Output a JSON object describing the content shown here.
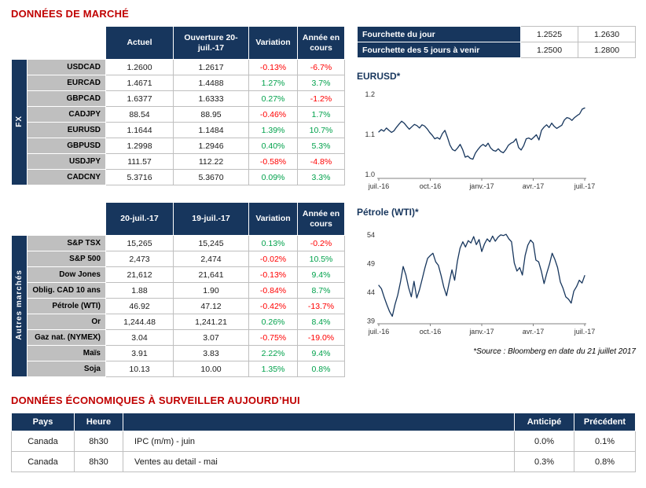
{
  "page": {
    "market_title": "DONNÉES DE MARCHÉ",
    "economic_title": "DONNÉES ÉCONOMIQUES À SURVEILLER AUJOURD’HUI",
    "source_note": "*Source : Bloomberg en date du  21 juillet 2017"
  },
  "colors": {
    "navy": "#17365D",
    "title_red": "#C00000",
    "positive_green": "#00A14B",
    "negative_red": "#FF0000",
    "label_gray": "#BFBFBF"
  },
  "fx_table": {
    "group_label": "FX",
    "headers": [
      "Actuel",
      "Ouverture 20-juil.-17",
      "Variation",
      "Année en cours"
    ],
    "rows": [
      {
        "label": "USDCAD",
        "actuel": "1.2600",
        "ouverture": "1.2617",
        "variation": "-0.13%",
        "ytd": "-6.7%"
      },
      {
        "label": "EURCAD",
        "actuel": "1.4671",
        "ouverture": "1.4488",
        "variation": "1.27%",
        "ytd": "3.7%"
      },
      {
        "label": "GBPCAD",
        "actuel": "1.6377",
        "ouverture": "1.6333",
        "variation": "0.27%",
        "ytd": "-1.2%"
      },
      {
        "label": "CADJPY",
        "actuel": "88.54",
        "ouverture": "88.95",
        "variation": "-0.46%",
        "ytd": "1.7%"
      },
      {
        "label": "EURUSD",
        "actuel": "1.1644",
        "ouverture": "1.1484",
        "variation": "1.39%",
        "ytd": "10.7%"
      },
      {
        "label": "GBPUSD",
        "actuel": "1.2998",
        "ouverture": "1.2946",
        "variation": "0.40%",
        "ytd": "5.3%"
      },
      {
        "label": "USDJPY",
        "actuel": "111.57",
        "ouverture": "112.22",
        "variation": "-0.58%",
        "ytd": "-4.8%"
      },
      {
        "label": "CADCNY",
        "actuel": "5.3716",
        "ouverture": "5.3670",
        "variation": "0.09%",
        "ytd": "3.3%"
      }
    ]
  },
  "markets_table": {
    "group_label": "Autres marchés",
    "headers": [
      "20-juil.-17",
      "19-juil.-17",
      "Variation",
      "Année en cours"
    ],
    "rows": [
      {
        "label": "S&P TSX",
        "d1": "15,265",
        "d2": "15,245",
        "variation": "0.13%",
        "ytd": "-0.2%"
      },
      {
        "label": "S&P 500",
        "d1": "2,473",
        "d2": "2,474",
        "variation": "-0.02%",
        "ytd": "10.5%"
      },
      {
        "label": "Dow Jones",
        "d1": "21,612",
        "d2": "21,641",
        "variation": "-0.13%",
        "ytd": "9.4%"
      },
      {
        "label": "Oblig. CAD 10 ans",
        "d1": "1.88",
        "d2": "1.90",
        "variation": "-0.84%",
        "ytd": "8.7%"
      },
      {
        "label": "Pétrole (WTI)",
        "d1": "46.92",
        "d2": "47.12",
        "variation": "-0.42%",
        "ytd": "-13.7%"
      },
      {
        "label": "Or",
        "d1": "1,244.48",
        "d2": "1,241.21",
        "variation": "0.26%",
        "ytd": "8.4%"
      },
      {
        "label": "Gaz nat. (NYMEX)",
        "d1": "3.04",
        "d2": "3.07",
        "variation": "-0.75%",
        "ytd": "-19.0%"
      },
      {
        "label": "Maïs",
        "d1": "3.91",
        "d2": "3.83",
        "variation": "2.22%",
        "ytd": "9.4%"
      },
      {
        "label": "Soja",
        "d1": "10.13",
        "d2": "10.00",
        "variation": "1.35%",
        "ytd": "0.8%"
      }
    ]
  },
  "ranges_table": {
    "rows": [
      {
        "label": "Fourchette du jour",
        "low": "1.2525",
        "high": "1.2630"
      },
      {
        "label": "Fourchette des 5 jours à venir",
        "low": "1.2500",
        "high": "1.2800"
      }
    ]
  },
  "economic_table": {
    "headers": [
      "Pays",
      "Heure",
      "",
      "Anticipé",
      "Précédent"
    ],
    "rows": [
      {
        "pays": "Canada",
        "heure": "8h30",
        "event": "IPC (m/m) - juin",
        "anticipe": "0.0%",
        "precedent": "0.1%"
      },
      {
        "pays": "Canada",
        "heure": "8h30",
        "event": "Ventes au detail - mai",
        "anticipe": "0.3%",
        "precedent": "0.8%"
      }
    ]
  },
  "chart_data": [
    {
      "type": "line",
      "title": "EURUSD*",
      "xlabel": "",
      "ylabel": "",
      "grid": false,
      "legend": null,
      "x_ticks": [
        "juil.-16",
        "oct.-16",
        "janv.-17",
        "avr.-17",
        "juil.-17"
      ],
      "y_ticks": [
        {
          "value": 1.2,
          "label": "1.2"
        },
        {
          "value": 1.1,
          "label": "1.1"
        },
        {
          "value": 1.0,
          "label": "1.0"
        }
      ],
      "ylim": [
        0.99,
        1.21
      ],
      "values": [
        1.106,
        1.112,
        1.108,
        1.116,
        1.11,
        1.105,
        1.109,
        1.118,
        1.126,
        1.133,
        1.128,
        1.12,
        1.113,
        1.119,
        1.125,
        1.122,
        1.116,
        1.124,
        1.121,
        1.114,
        1.105,
        1.098,
        1.089,
        1.092,
        1.088,
        1.102,
        1.11,
        1.093,
        1.073,
        1.062,
        1.059,
        1.066,
        1.075,
        1.062,
        1.043,
        1.046,
        1.04,
        1.038,
        1.053,
        1.062,
        1.07,
        1.075,
        1.07,
        1.078,
        1.066,
        1.06,
        1.058,
        1.064,
        1.057,
        1.054,
        1.062,
        1.073,
        1.078,
        1.081,
        1.089,
        1.067,
        1.061,
        1.072,
        1.089,
        1.091,
        1.087,
        1.093,
        1.099,
        1.086,
        1.11,
        1.118,
        1.124,
        1.117,
        1.128,
        1.12,
        1.115,
        1.119,
        1.123,
        1.136,
        1.142,
        1.14,
        1.135,
        1.142,
        1.147,
        1.151,
        1.163,
        1.166
      ]
    },
    {
      "type": "line",
      "title": "Pétrole (WTI)*",
      "xlabel": "",
      "ylabel": "",
      "grid": false,
      "legend": null,
      "x_ticks": [
        "juil.-16",
        "oct.-16",
        "janv.-17",
        "avr.-17",
        "juil.-17"
      ],
      "y_ticks": [
        {
          "value": 54,
          "label": "54"
        },
        {
          "value": 49,
          "label": "49"
        },
        {
          "value": 44,
          "label": "44"
        },
        {
          "value": 39,
          "label": "39"
        }
      ],
      "ylim": [
        38.5,
        55.5
      ],
      "values": [
        45.2,
        44.6,
        43.1,
        41.8,
        40.6,
        39.8,
        41.9,
        43.5,
        45.8,
        48.5,
        47.0,
        44.8,
        43.2,
        45.9,
        43.0,
        44.4,
        46.3,
        48.2,
        49.9,
        50.4,
        50.8,
        49.3,
        48.7,
        46.9,
        44.9,
        43.4,
        45.7,
        47.9,
        46.1,
        49.4,
        51.7,
        52.8,
        51.9,
        53.0,
        52.6,
        53.7,
        52.3,
        53.2,
        51.1,
        52.4,
        53.3,
        52.8,
        53.8,
        52.9,
        53.6,
        54.0,
        53.9,
        54.1,
        53.3,
        52.8,
        49.1,
        47.7,
        48.3,
        47.0,
        50.4,
        52.2,
        53.1,
        52.6,
        49.6,
        49.3,
        47.7,
        45.5,
        47.3,
        48.9,
        50.8,
        49.7,
        48.3,
        45.8,
        44.7,
        43.2,
        42.8,
        42.1,
        44.2,
        45.0,
        46.1,
        45.6,
        46.9
      ]
    }
  ]
}
